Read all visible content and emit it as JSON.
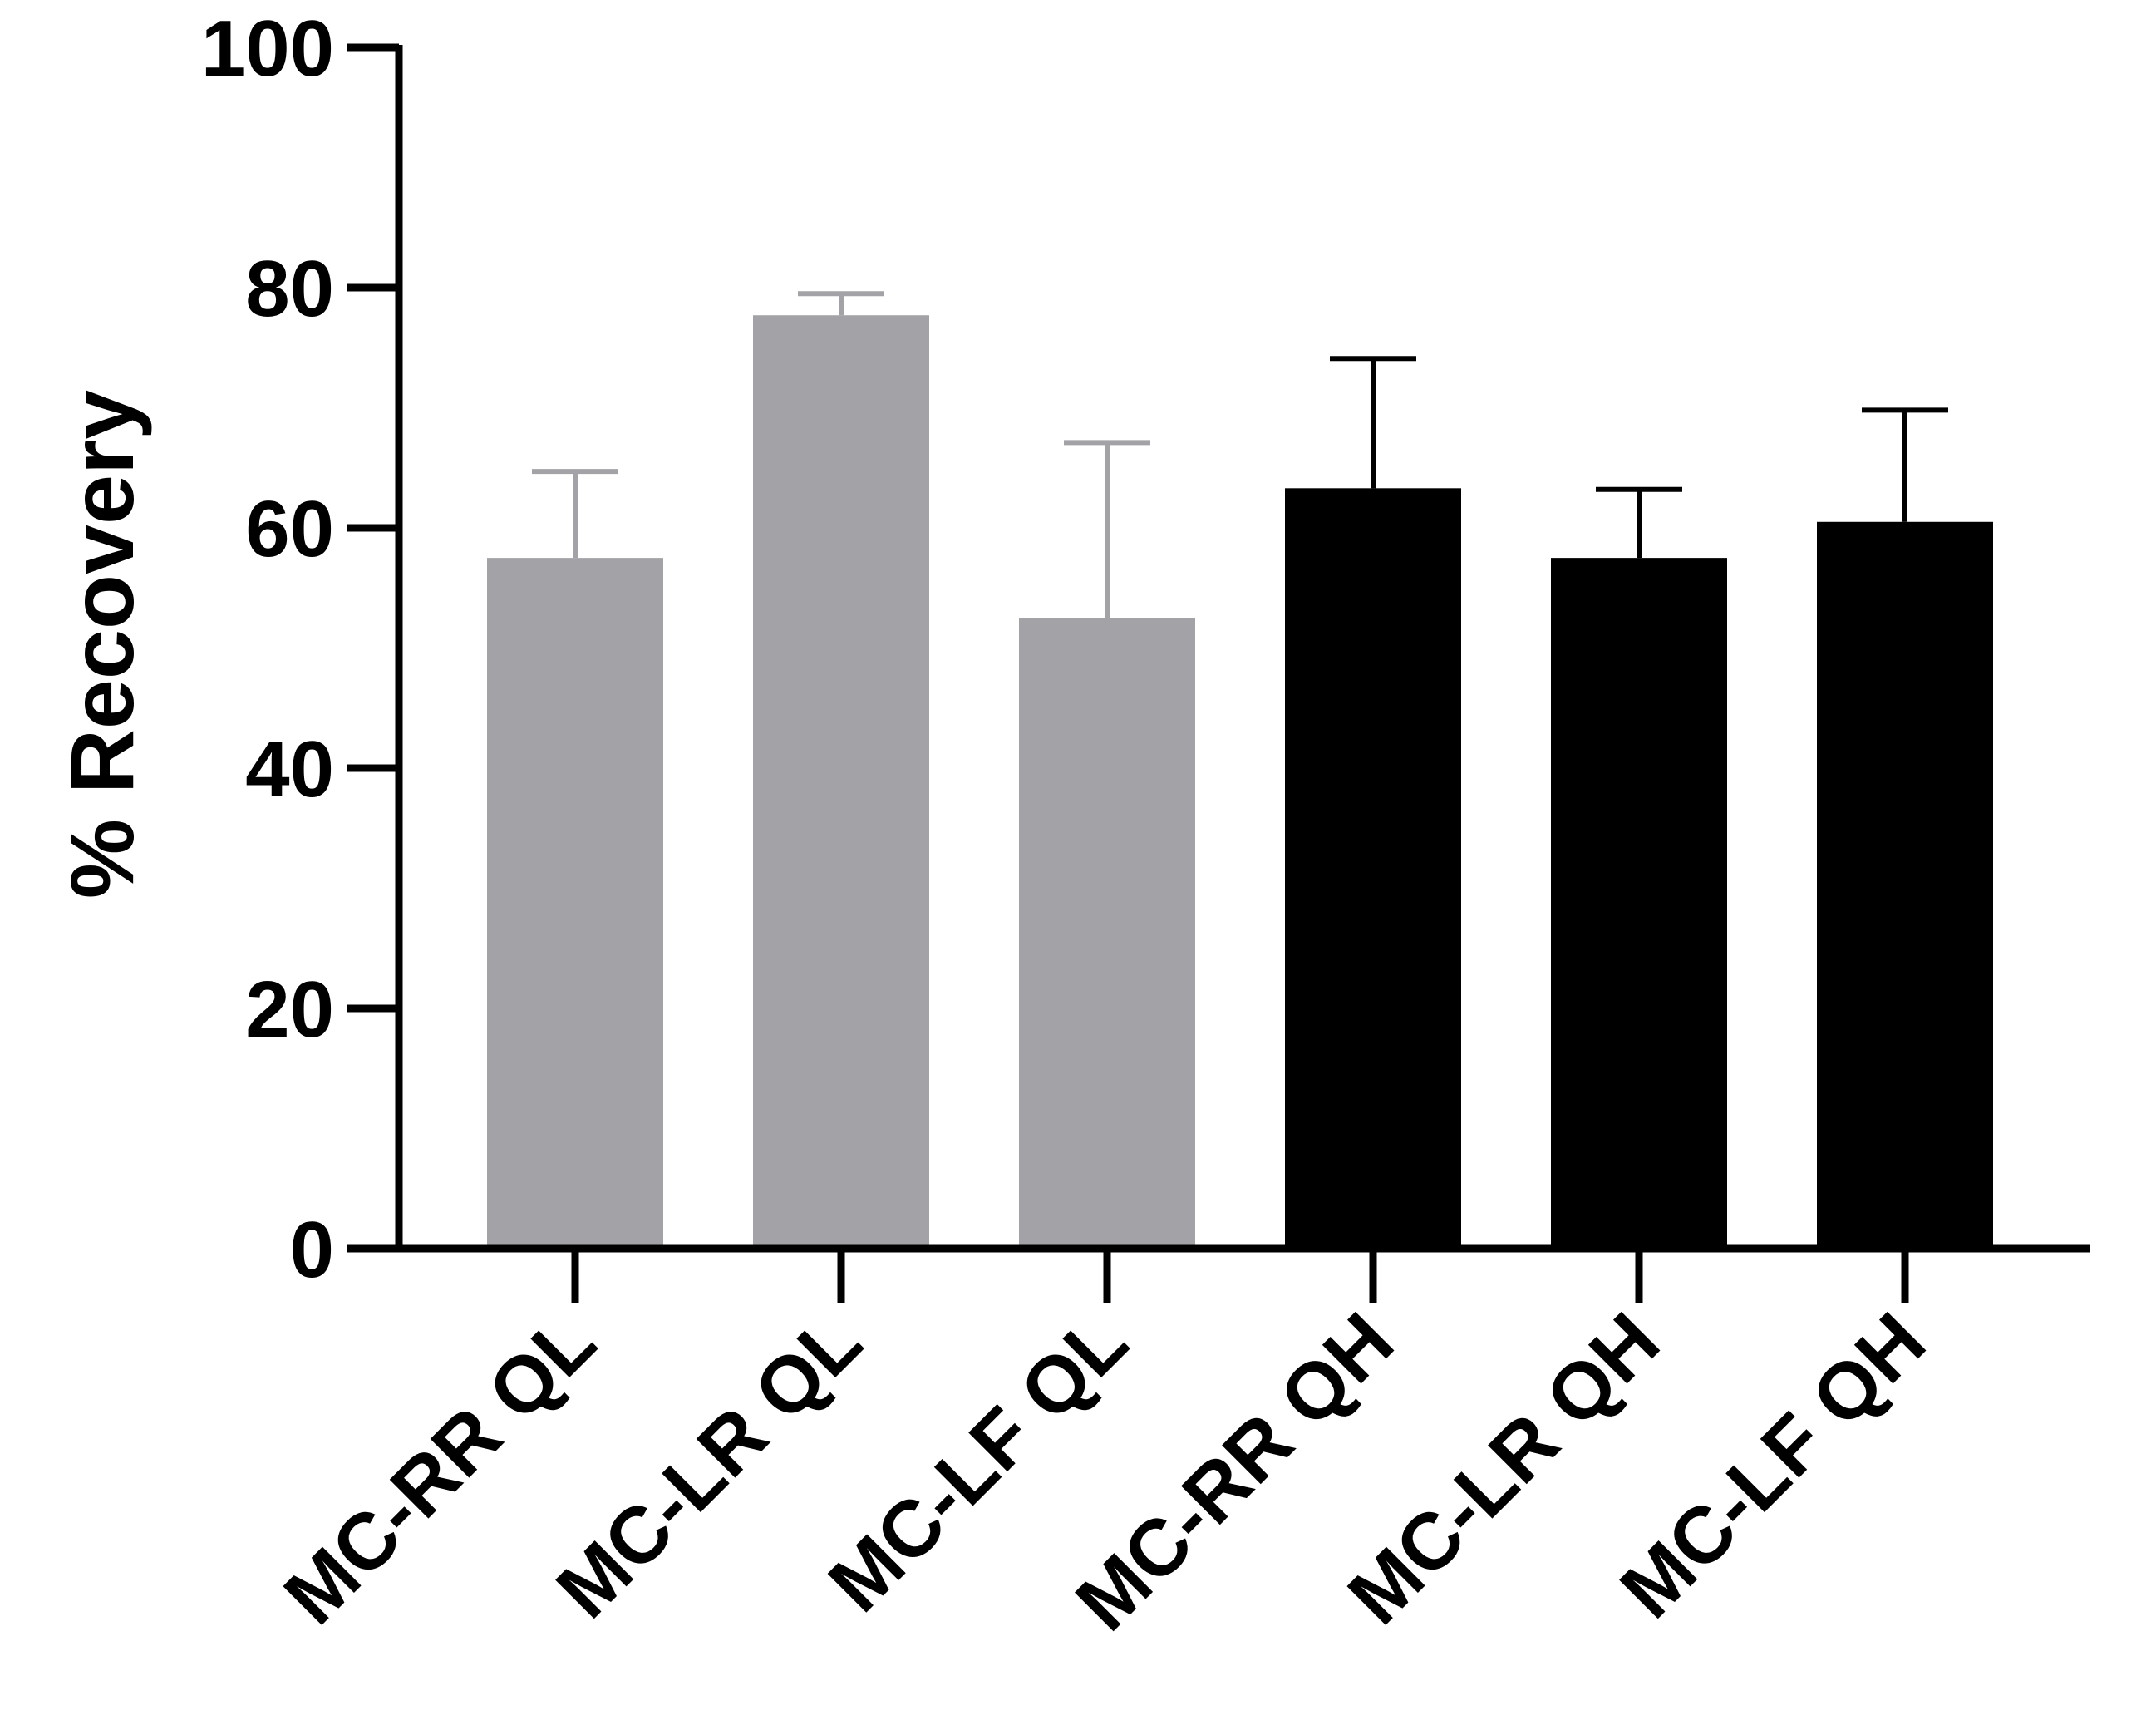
{
  "chart_data": {
    "type": "bar",
    "title": "",
    "xlabel": "",
    "ylabel": "%  Recovery",
    "ylim": [
      0,
      100
    ],
    "yticks": [
      0,
      20,
      40,
      60,
      80,
      100
    ],
    "grid": false,
    "legend": "none",
    "categories": [
      "MC-RR QL",
      "MC-LR QL",
      "MC-LF QL",
      "MC-RR QH",
      "MC-LR QH",
      "MC-LF QH"
    ],
    "values": [
      57.5,
      77.7,
      52.5,
      63.3,
      57.5,
      60.5
    ],
    "errors": [
      7.2,
      1.8,
      14.6,
      10.8,
      5.7,
      9.3
    ],
    "colors": [
      "#a3a2a6",
      "#a3a2a6",
      "#a3a2a6",
      "#000000",
      "#000000",
      "#000000"
    ]
  }
}
